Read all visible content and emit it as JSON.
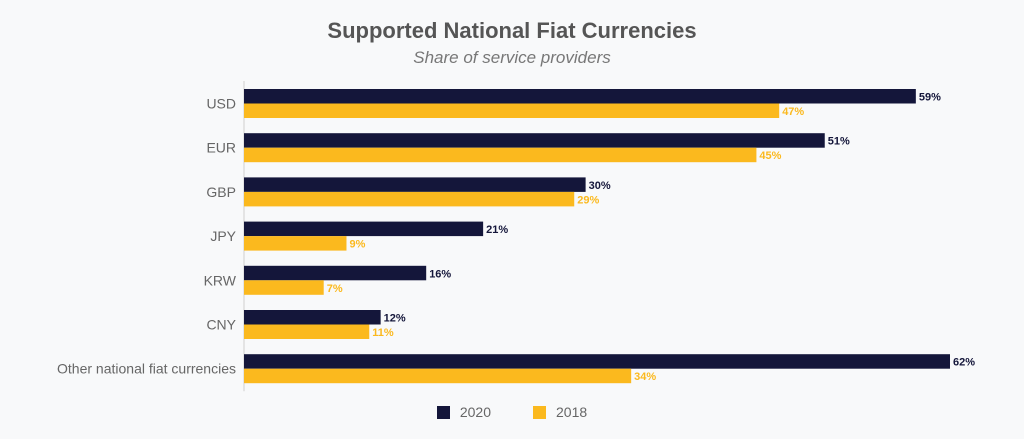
{
  "header": {
    "title": "Supported National Fiat Currencies",
    "subtitle": "Share of service providers"
  },
  "colors": {
    "series_2020": "#14163a",
    "series_2018": "#fbb91e",
    "axis": "#cfcfcf"
  },
  "chart_data": {
    "type": "bar",
    "orientation": "horizontal",
    "title": "Supported National Fiat Currencies",
    "subtitle": "Share of service providers",
    "categories": [
      "USD",
      "EUR",
      "GBP",
      "JPY",
      "KRW",
      "CNY",
      "Other national fiat currencies"
    ],
    "series": [
      {
        "name": "2020",
        "values": [
          59,
          51,
          30,
          21,
          16,
          12,
          62
        ],
        "labels": [
          "59%",
          "51%",
          "30%",
          "21%",
          "16%",
          "12%",
          "62%"
        ]
      },
      {
        "name": "2018",
        "values": [
          47,
          45,
          29,
          9,
          7,
          11,
          34
        ],
        "labels": [
          "47%",
          "45%",
          "29%",
          "9%",
          "7%",
          "11%",
          "34%"
        ]
      }
    ],
    "xlim": [
      0,
      62
    ],
    "legend": "bottom",
    "grid": false
  }
}
